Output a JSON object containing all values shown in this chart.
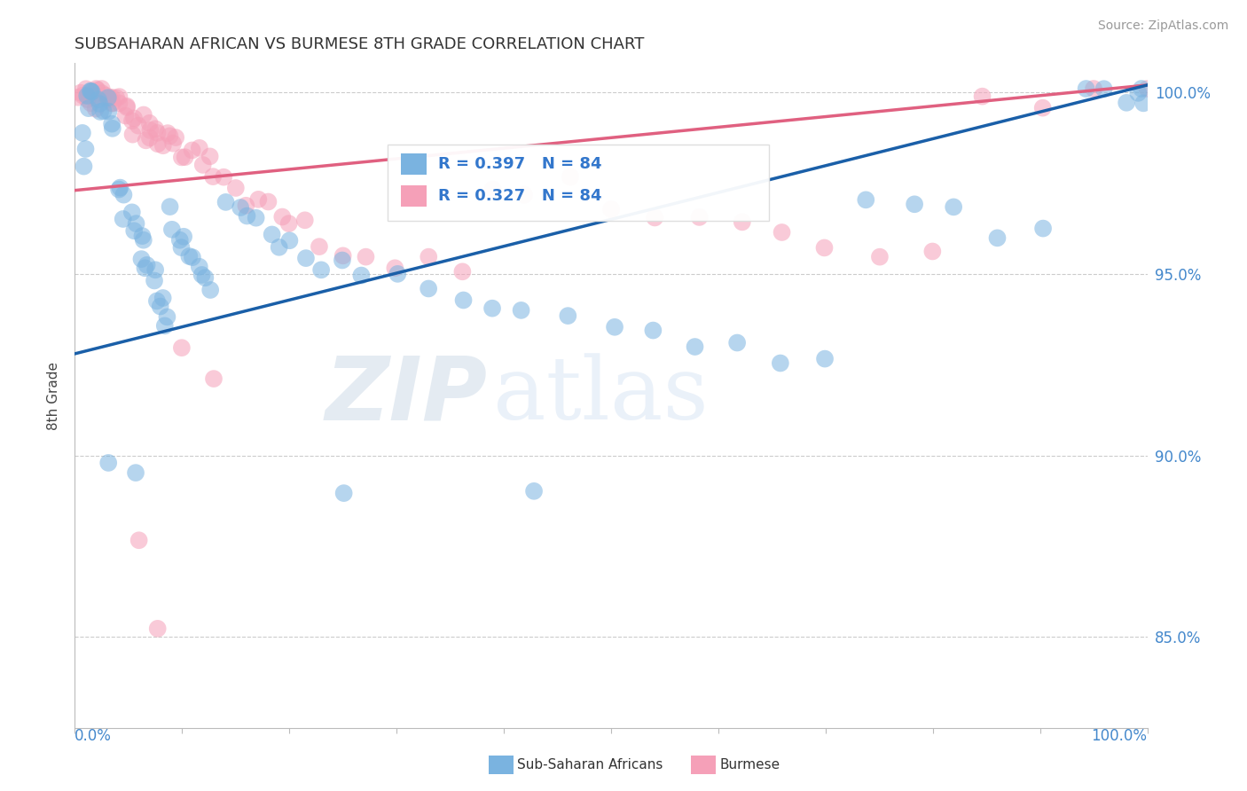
{
  "title": "SUBSAHARAN AFRICAN VS BURMESE 8TH GRADE CORRELATION CHART",
  "source": "Source: ZipAtlas.com",
  "ylabel": "8th Grade",
  "xlim": [
    0.0,
    1.0
  ],
  "ylim": [
    0.825,
    1.008
  ],
  "legend_blue_label": "Sub-Saharan Africans",
  "legend_pink_label": "Burmese",
  "blue_R": 0.397,
  "pink_R": 0.327,
  "N": 84,
  "blue_color": "#7ab3e0",
  "pink_color": "#f5a0b8",
  "blue_line_color": "#1a5fa8",
  "pink_line_color": "#e06080",
  "blue_trend": [
    0.928,
    1.002
  ],
  "pink_trend": [
    0.973,
    1.002
  ],
  "blue_x": [
    0.005,
    0.008,
    0.01,
    0.012,
    0.013,
    0.015,
    0.016,
    0.018,
    0.02,
    0.022,
    0.025,
    0.027,
    0.03,
    0.032,
    0.035,
    0.038,
    0.04,
    0.042,
    0.045,
    0.048,
    0.05,
    0.055,
    0.058,
    0.06,
    0.063,
    0.065,
    0.068,
    0.07,
    0.073,
    0.075,
    0.078,
    0.08,
    0.083,
    0.085,
    0.088,
    0.09,
    0.093,
    0.095,
    0.098,
    0.1,
    0.105,
    0.11,
    0.115,
    0.12,
    0.125,
    0.13,
    0.14,
    0.15,
    0.16,
    0.17,
    0.18,
    0.19,
    0.2,
    0.215,
    0.23,
    0.25,
    0.27,
    0.3,
    0.33,
    0.36,
    0.39,
    0.42,
    0.46,
    0.5,
    0.54,
    0.58,
    0.62,
    0.66,
    0.7,
    0.74,
    0.78,
    0.82,
    0.86,
    0.9,
    0.94,
    0.96,
    0.98,
    0.99,
    0.995,
    1.0,
    0.03,
    0.055,
    0.25,
    0.43
  ],
  "blue_y": [
    0.98,
    0.99,
    0.985,
    0.993,
    0.996,
    0.999,
    0.999,
    0.999,
    0.998,
    0.997,
    0.996,
    0.995,
    0.994,
    0.993,
    0.992,
    0.991,
    0.975,
    0.973,
    0.971,
    0.968,
    0.966,
    0.963,
    0.961,
    0.959,
    0.957,
    0.955,
    0.953,
    0.951,
    0.949,
    0.947,
    0.945,
    0.943,
    0.941,
    0.939,
    0.937,
    0.965,
    0.963,
    0.961,
    0.959,
    0.957,
    0.955,
    0.953,
    0.951,
    0.949,
    0.947,
    0.945,
    0.971,
    0.969,
    0.967,
    0.965,
    0.963,
    0.961,
    0.959,
    0.957,
    0.955,
    0.953,
    0.951,
    0.949,
    0.947,
    0.945,
    0.943,
    0.941,
    0.939,
    0.937,
    0.935,
    0.933,
    0.931,
    0.929,
    0.927,
    0.969,
    0.967,
    0.965,
    0.963,
    0.961,
    0.999,
    0.999,
    0.999,
    0.999,
    1.0,
    1.0,
    0.897,
    0.893,
    0.891,
    0.889
  ],
  "pink_x": [
    0.005,
    0.007,
    0.009,
    0.01,
    0.012,
    0.013,
    0.015,
    0.016,
    0.018,
    0.02,
    0.022,
    0.024,
    0.026,
    0.028,
    0.03,
    0.032,
    0.034,
    0.036,
    0.038,
    0.04,
    0.042,
    0.045,
    0.048,
    0.05,
    0.053,
    0.055,
    0.058,
    0.06,
    0.063,
    0.065,
    0.068,
    0.07,
    0.073,
    0.075,
    0.078,
    0.08,
    0.083,
    0.085,
    0.088,
    0.09,
    0.095,
    0.1,
    0.105,
    0.11,
    0.115,
    0.12,
    0.125,
    0.13,
    0.14,
    0.15,
    0.16,
    0.17,
    0.18,
    0.19,
    0.2,
    0.215,
    0.23,
    0.25,
    0.27,
    0.3,
    0.33,
    0.36,
    0.39,
    0.42,
    0.46,
    0.5,
    0.54,
    0.58,
    0.62,
    0.66,
    0.7,
    0.75,
    0.8,
    0.85,
    0.9,
    0.95,
    1.0,
    0.02,
    0.03,
    0.04,
    0.06,
    0.08,
    0.1,
    0.13
  ],
  "pink_y": [
    0.999,
    0.999,
    0.999,
    0.999,
    0.999,
    0.999,
    0.999,
    0.999,
    0.999,
    0.999,
    0.999,
    0.999,
    0.999,
    0.999,
    0.999,
    0.998,
    0.998,
    0.997,
    0.997,
    0.996,
    0.996,
    0.995,
    0.995,
    0.994,
    0.994,
    0.993,
    0.993,
    0.992,
    0.992,
    0.991,
    0.991,
    0.99,
    0.99,
    0.989,
    0.989,
    0.988,
    0.988,
    0.987,
    0.987,
    0.986,
    0.985,
    0.984,
    0.983,
    0.982,
    0.981,
    0.98,
    0.979,
    0.978,
    0.976,
    0.974,
    0.972,
    0.97,
    0.968,
    0.966,
    0.964,
    0.962,
    0.96,
    0.958,
    0.956,
    0.954,
    0.952,
    0.95,
    0.975,
    0.973,
    0.971,
    0.969,
    0.967,
    0.965,
    0.963,
    0.961,
    0.959,
    0.957,
    0.955,
    0.999,
    0.999,
    0.999,
    1.0,
    0.999,
    0.999,
    0.998,
    0.878,
    0.855,
    0.929,
    0.924
  ]
}
